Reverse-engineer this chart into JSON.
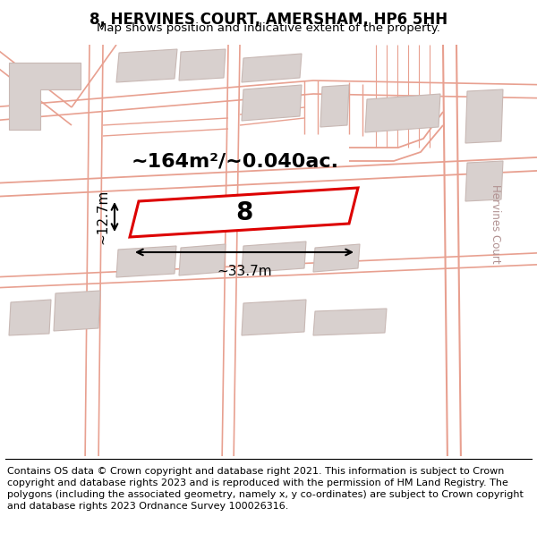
{
  "title": "8, HERVINES COURT, AMERSHAM, HP6 5HH",
  "subtitle": "Map shows position and indicative extent of the property.",
  "footer": "Contains OS data © Crown copyright and database right 2021. This information is subject to Crown copyright and database rights 2023 and is reproduced with the permission of HM Land Registry. The polygons (including the associated geometry, namely x, y co-ordinates) are subject to Crown copyright and database rights 2023 Ordnance Survey 100026316.",
  "area_label": "~164m²/~0.040ac.",
  "width_label": "~33.7m",
  "height_label": "~12.7m",
  "plot_number": "8",
  "map_bg": "#ffffff",
  "plot_fill": "#ffffff",
  "plot_edge": "#dd0000",
  "road_color": "#e8a090",
  "building_fill": "#d8d0ce",
  "building_edge": "#c8b8b4",
  "road_label": "Hervines Court",
  "title_fontsize": 12,
  "subtitle_fontsize": 9.5,
  "footer_fontsize": 8.0,
  "area_fontsize": 16,
  "dim_fontsize": 11,
  "plot_num_fontsize": 20
}
